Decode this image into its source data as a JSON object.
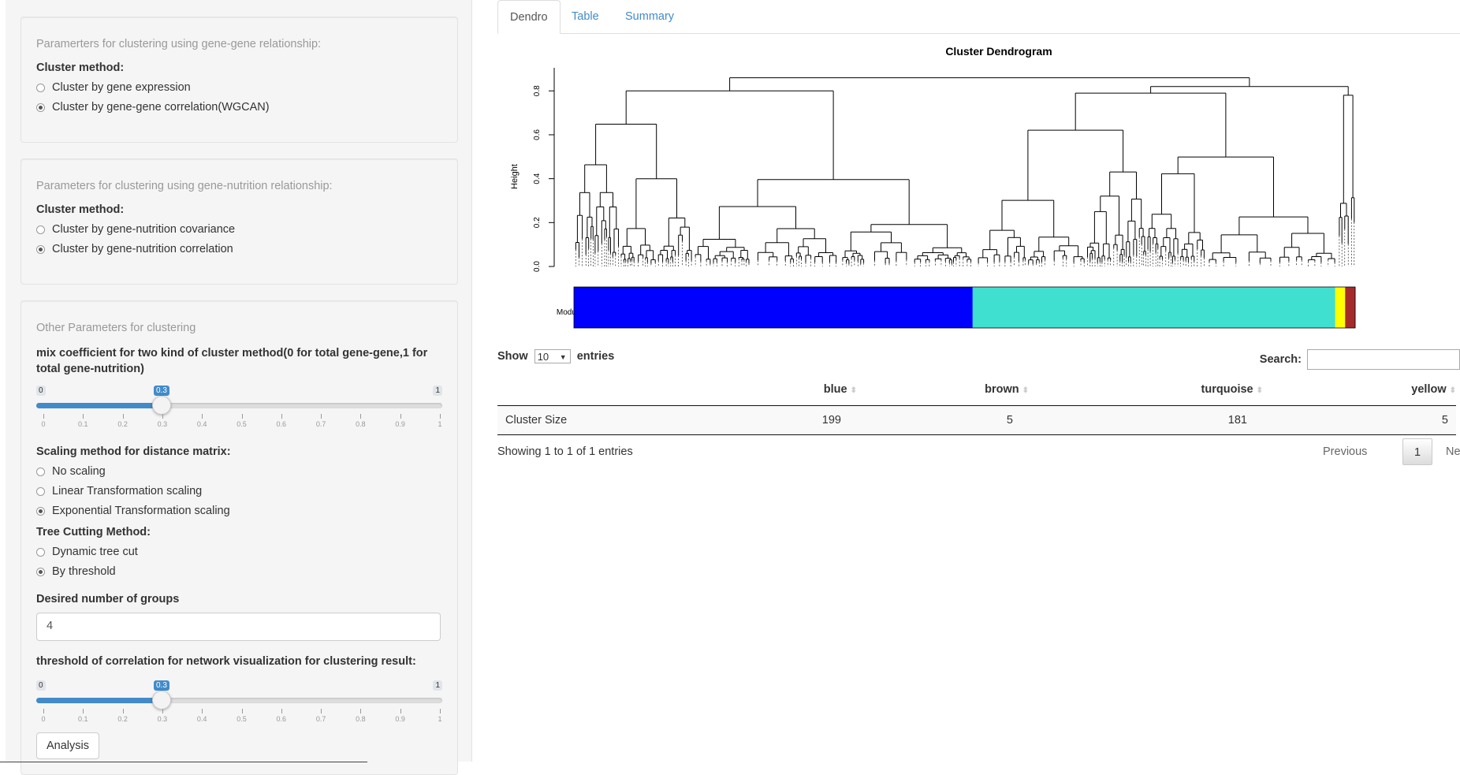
{
  "sidebar": {
    "panel1": {
      "title": "Paramerters for clustering using gene-gene relationship:",
      "method_label": "Cluster method:",
      "options": [
        "Cluster by gene expression",
        "Cluster by gene-gene correlation(WGCAN)"
      ],
      "selected": 1
    },
    "panel2": {
      "title": "Parameters for clustering using gene-nutrition relationship:",
      "method_label": "Cluster method:",
      "options": [
        "Cluster by gene-nutrition covariance",
        "Cluster by gene-nutrition correlation"
      ],
      "selected": 1
    },
    "panel3": {
      "title": "Other Parameters for clustering",
      "mix_label": "mix coefficient for two kind of cluster method(0 for total gene-gene,1 for total gene-nutrition)",
      "mix_slider": {
        "min": "0",
        "max": "1",
        "value": "0.3",
        "ticks": [
          "0",
          "0.1",
          "0.2",
          "0.3",
          "0.4",
          "0.5",
          "0.6",
          "0.7",
          "0.8",
          "0.9",
          "1"
        ]
      },
      "scaling_label": "Scaling method for distance matrix:",
      "scaling_options": [
        "No scaling",
        "Linear Transformation scaling",
        "Exponential Transformation scaling"
      ],
      "scaling_selected": 2,
      "cut_label": "Tree Cutting Method:",
      "cut_options": [
        "Dynamic tree cut",
        "By threshold"
      ],
      "cut_selected": 1,
      "groups_label": "Desired number of groups",
      "groups_value": "4",
      "thresh_label": "threshold of correlation for network visualization for clustering result:",
      "thresh_slider": {
        "min": "0",
        "max": "1",
        "value": "0.3",
        "ticks": [
          "0",
          "0.1",
          "0.2",
          "0.3",
          "0.4",
          "0.5",
          "0.6",
          "0.7",
          "0.8",
          "0.9",
          "1"
        ]
      },
      "analysis_button": "Analysis"
    }
  },
  "tabs": [
    "Dendro",
    "Table",
    "Summary"
  ],
  "active_tab": 0,
  "chart_data": {
    "type": "dendrogram",
    "title": "Cluster Dendrogram",
    "ylabel": "Height",
    "yticks": [
      "0.0",
      "0.2",
      "0.4",
      "0.6",
      "0.8"
    ],
    "ylim": [
      0,
      0.88
    ],
    "module_colors_label": "Module colors",
    "modules": [
      {
        "name": "blue",
        "size": 199,
        "color": "#0000ff"
      },
      {
        "name": "turquoise",
        "size": 181,
        "color": "#40e0d0"
      },
      {
        "name": "yellow",
        "size": 5,
        "color": "#ffff00"
      },
      {
        "name": "brown",
        "size": 5,
        "color": "#a52a2a"
      }
    ]
  },
  "datatable": {
    "show_prefix": "Show",
    "show_value": "10",
    "show_suffix": "entries",
    "search_label": "Search:",
    "columns": [
      "blue",
      "brown",
      "turquoise",
      "yellow"
    ],
    "rows": [
      {
        "label": "Cluster Size",
        "values": [
          "199",
          "5",
          "181",
          "5"
        ]
      }
    ],
    "info": "Showing 1 to 1 of 1 entries",
    "prev": "Previous",
    "page": "1",
    "next": "Next"
  }
}
